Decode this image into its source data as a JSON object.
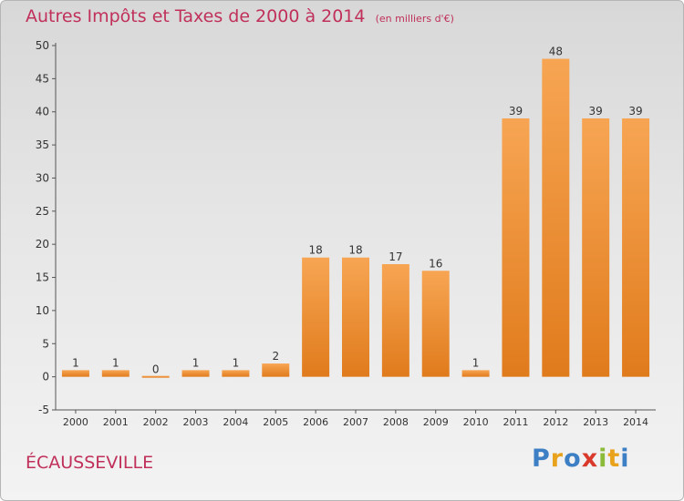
{
  "chart_data": {
    "type": "bar",
    "title": "Autres Impôts et Taxes de 2000 à 2014",
    "unit": "(en milliers d'€)",
    "categories": [
      "2000",
      "2001",
      "2002",
      "2003",
      "2004",
      "2005",
      "2006",
      "2007",
      "2008",
      "2009",
      "2010",
      "2011",
      "2012",
      "2013",
      "2014"
    ],
    "values": [
      1,
      1,
      0,
      1,
      1,
      2,
      18,
      18,
      17,
      16,
      1,
      39,
      48,
      39,
      39
    ],
    "data_labels": [
      "1",
      "1",
      "0",
      "1",
      "1",
      "2",
      "18",
      "18",
      "17",
      "16",
      "1",
      "39",
      "48",
      "39",
      "39"
    ],
    "ylim": [
      -5,
      50
    ],
    "yticks": [
      -5,
      0,
      5,
      10,
      15,
      20,
      25,
      30,
      35,
      40,
      45,
      50
    ],
    "grid": false,
    "colors": {
      "bar_light": "#f7a553",
      "bar_dark": "#e07b1c",
      "title": "#c0305a"
    }
  },
  "place_name": "ÉCAUSSEVILLE",
  "brand": {
    "letters": [
      "P",
      "r",
      "o",
      "x",
      "i",
      "t",
      "i"
    ],
    "colors": [
      "#3d7fc4",
      "#e8a21c",
      "#3d7fc4",
      "#d93a2b",
      "#8cbb3a",
      "#e8a21c",
      "#3d7fc4"
    ]
  }
}
